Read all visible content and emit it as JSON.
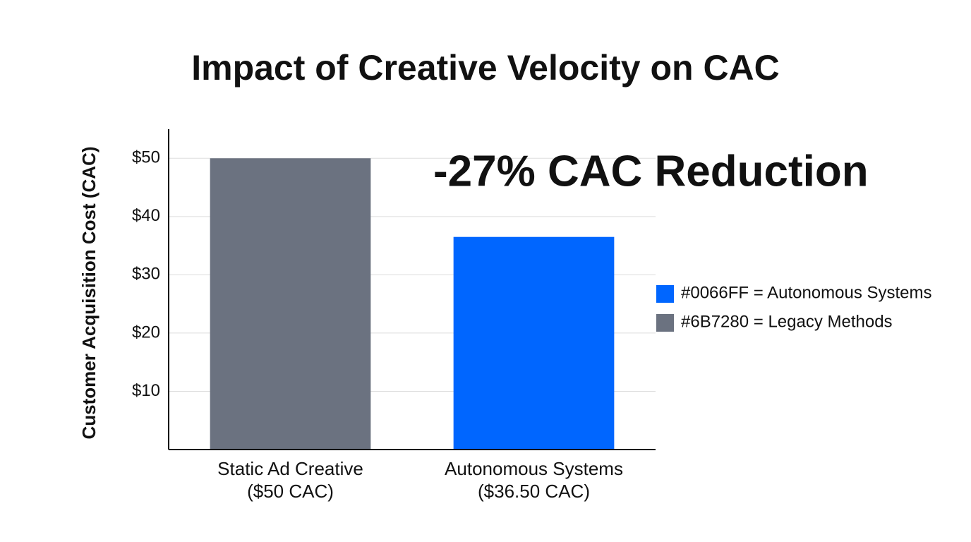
{
  "chart_data": {
    "type": "bar",
    "title": "Impact of Creative Velocity on CAC",
    "annotation": "-27% CAC Reduction",
    "ylabel": "Customer Acquisition Cost (CAC)",
    "categories": [
      [
        "Static Ad Creative",
        "($50 CAC)"
      ],
      [
        "Autonomous Systems",
        "($36.50 CAC)"
      ]
    ],
    "values": [
      50,
      36.5
    ],
    "colors": [
      "#6B7280",
      "#0066FF"
    ],
    "ylim": [
      0,
      55
    ],
    "yticks": [
      {
        "value": 10,
        "label": "$10"
      },
      {
        "value": 20,
        "label": "$20"
      },
      {
        "value": 30,
        "label": "$30"
      },
      {
        "value": 40,
        "label": "$40"
      },
      {
        "value": 50,
        "label": "$50"
      }
    ],
    "grid": true,
    "legend": [
      {
        "label": "#0066FF = Autonomous Systems",
        "color": "#0066FF"
      },
      {
        "label": "#6B7280 = Legacy Methods",
        "color": "#6B7280"
      }
    ]
  }
}
